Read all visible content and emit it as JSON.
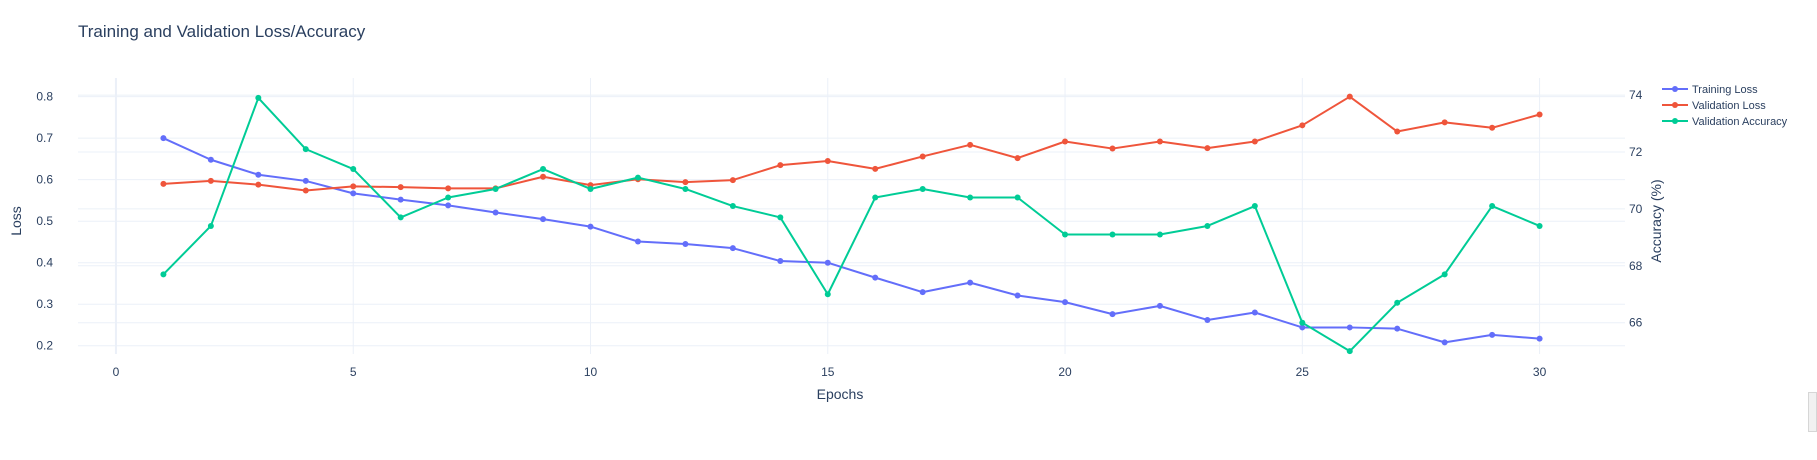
{
  "chart_data": {
    "type": "line",
    "title": "Training and Validation Loss/Accuracy",
    "xlabel": "Epochs",
    "ylabel": "Loss",
    "y2label": "Accuracy (%)",
    "xlim": [
      -0.8,
      31.8
    ],
    "ylim": [
      0.18,
      0.845
    ],
    "y2lim": [
      64.9,
      74.6
    ],
    "xticks": [
      0,
      5,
      10,
      15,
      20,
      25,
      30
    ],
    "yticks": [
      0.2,
      0.3,
      0.4,
      0.5,
      0.6,
      0.7,
      0.8
    ],
    "y2ticks": [
      66,
      68,
      70,
      72,
      74
    ],
    "grid": true,
    "legend_position": "top-right",
    "x": [
      1,
      2,
      3,
      4,
      5,
      6,
      7,
      8,
      9,
      10,
      11,
      12,
      13,
      14,
      15,
      16,
      17,
      18,
      19,
      20,
      21,
      22,
      23,
      24,
      25,
      26,
      27,
      28,
      29,
      30
    ],
    "series": [
      {
        "name": "Training Loss",
        "axis": "y",
        "color": "#636efa",
        "values": [
          0.7,
          0.648,
          0.612,
          0.597,
          0.567,
          0.552,
          0.538,
          0.521,
          0.505,
          0.487,
          0.451,
          0.445,
          0.435,
          0.404,
          0.4,
          0.364,
          0.329,
          0.352,
          0.321,
          0.305,
          0.276,
          0.296,
          0.262,
          0.28,
          0.244,
          0.244,
          0.241,
          0.208,
          0.226,
          0.217
        ]
      },
      {
        "name": "Validation Loss",
        "axis": "y",
        "color": "#ef553b",
        "values": [
          0.59,
          0.597,
          0.588,
          0.574,
          0.584,
          0.582,
          0.579,
          0.579,
          0.607,
          0.587,
          0.601,
          0.594,
          0.599,
          0.635,
          0.645,
          0.626,
          0.656,
          0.684,
          0.652,
          0.692,
          0.675,
          0.692,
          0.676,
          0.692,
          0.731,
          0.8,
          0.716,
          0.738,
          0.725,
          0.757
        ]
      },
      {
        "name": "Validation Accuracy",
        "axis": "y2",
        "color": "#00cc96",
        "values": [
          67.7,
          69.4,
          73.9,
          72.1,
          71.4,
          69.7,
          70.4,
          70.7,
          71.4,
          70.7,
          71.1,
          70.7,
          70.1,
          69.7,
          67.0,
          70.4,
          70.7,
          70.4,
          70.4,
          69.1,
          69.1,
          69.1,
          69.4,
          70.1,
          66.0,
          65.0,
          66.7,
          67.7,
          70.1,
          69.4
        ]
      }
    ]
  }
}
